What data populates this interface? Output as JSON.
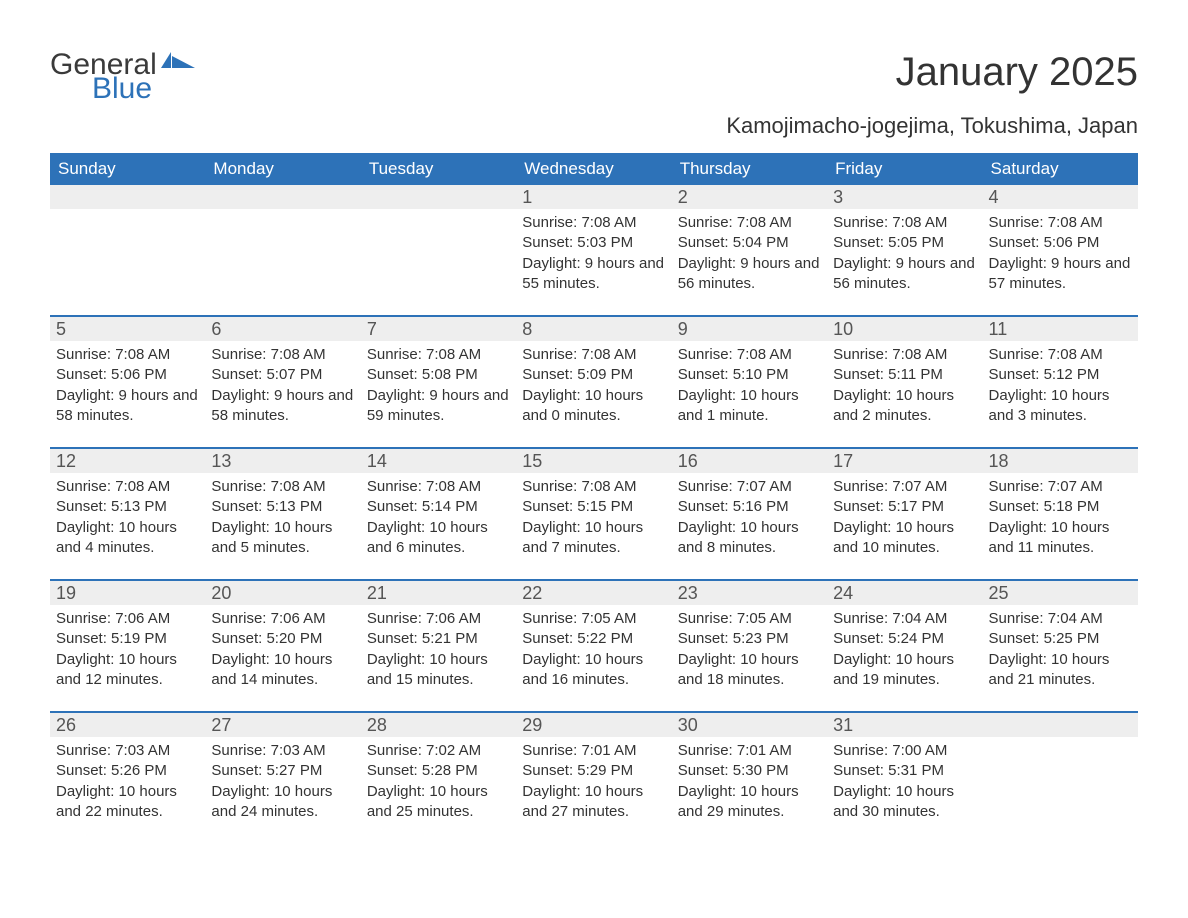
{
  "brand": {
    "general": "General",
    "blue": "Blue",
    "flag_color": "#2d72b8"
  },
  "title": "January 2025",
  "subtitle": "Kamojimacho-jogejima, Tokushima, Japan",
  "colors": {
    "header_bg": "#2d72b8",
    "header_text": "#ffffff",
    "daynum_bg": "#eeeeee",
    "body_text": "#333333",
    "week_divider": "#2d72b8",
    "page_bg": "#ffffff"
  },
  "weekdays": [
    "Sunday",
    "Monday",
    "Tuesday",
    "Wednesday",
    "Thursday",
    "Friday",
    "Saturday"
  ],
  "weeks": [
    [
      null,
      null,
      null,
      {
        "n": "1",
        "sunrise": "7:08 AM",
        "sunset": "5:03 PM",
        "daylight": "9 hours and 55 minutes."
      },
      {
        "n": "2",
        "sunrise": "7:08 AM",
        "sunset": "5:04 PM",
        "daylight": "9 hours and 56 minutes."
      },
      {
        "n": "3",
        "sunrise": "7:08 AM",
        "sunset": "5:05 PM",
        "daylight": "9 hours and 56 minutes."
      },
      {
        "n": "4",
        "sunrise": "7:08 AM",
        "sunset": "5:06 PM",
        "daylight": "9 hours and 57 minutes."
      }
    ],
    [
      {
        "n": "5",
        "sunrise": "7:08 AM",
        "sunset": "5:06 PM",
        "daylight": "9 hours and 58 minutes."
      },
      {
        "n": "6",
        "sunrise": "7:08 AM",
        "sunset": "5:07 PM",
        "daylight": "9 hours and 58 minutes."
      },
      {
        "n": "7",
        "sunrise": "7:08 AM",
        "sunset": "5:08 PM",
        "daylight": "9 hours and 59 minutes."
      },
      {
        "n": "8",
        "sunrise": "7:08 AM",
        "sunset": "5:09 PM",
        "daylight": "10 hours and 0 minutes."
      },
      {
        "n": "9",
        "sunrise": "7:08 AM",
        "sunset": "5:10 PM",
        "daylight": "10 hours and 1 minute."
      },
      {
        "n": "10",
        "sunrise": "7:08 AM",
        "sunset": "5:11 PM",
        "daylight": "10 hours and 2 minutes."
      },
      {
        "n": "11",
        "sunrise": "7:08 AM",
        "sunset": "5:12 PM",
        "daylight": "10 hours and 3 minutes."
      }
    ],
    [
      {
        "n": "12",
        "sunrise": "7:08 AM",
        "sunset": "5:13 PM",
        "daylight": "10 hours and 4 minutes."
      },
      {
        "n": "13",
        "sunrise": "7:08 AM",
        "sunset": "5:13 PM",
        "daylight": "10 hours and 5 minutes."
      },
      {
        "n": "14",
        "sunrise": "7:08 AM",
        "sunset": "5:14 PM",
        "daylight": "10 hours and 6 minutes."
      },
      {
        "n": "15",
        "sunrise": "7:08 AM",
        "sunset": "5:15 PM",
        "daylight": "10 hours and 7 minutes."
      },
      {
        "n": "16",
        "sunrise": "7:07 AM",
        "sunset": "5:16 PM",
        "daylight": "10 hours and 8 minutes."
      },
      {
        "n": "17",
        "sunrise": "7:07 AM",
        "sunset": "5:17 PM",
        "daylight": "10 hours and 10 minutes."
      },
      {
        "n": "18",
        "sunrise": "7:07 AM",
        "sunset": "5:18 PM",
        "daylight": "10 hours and 11 minutes."
      }
    ],
    [
      {
        "n": "19",
        "sunrise": "7:06 AM",
        "sunset": "5:19 PM",
        "daylight": "10 hours and 12 minutes."
      },
      {
        "n": "20",
        "sunrise": "7:06 AM",
        "sunset": "5:20 PM",
        "daylight": "10 hours and 14 minutes."
      },
      {
        "n": "21",
        "sunrise": "7:06 AM",
        "sunset": "5:21 PM",
        "daylight": "10 hours and 15 minutes."
      },
      {
        "n": "22",
        "sunrise": "7:05 AM",
        "sunset": "5:22 PM",
        "daylight": "10 hours and 16 minutes."
      },
      {
        "n": "23",
        "sunrise": "7:05 AM",
        "sunset": "5:23 PM",
        "daylight": "10 hours and 18 minutes."
      },
      {
        "n": "24",
        "sunrise": "7:04 AM",
        "sunset": "5:24 PM",
        "daylight": "10 hours and 19 minutes."
      },
      {
        "n": "25",
        "sunrise": "7:04 AM",
        "sunset": "5:25 PM",
        "daylight": "10 hours and 21 minutes."
      }
    ],
    [
      {
        "n": "26",
        "sunrise": "7:03 AM",
        "sunset": "5:26 PM",
        "daylight": "10 hours and 22 minutes."
      },
      {
        "n": "27",
        "sunrise": "7:03 AM",
        "sunset": "5:27 PM",
        "daylight": "10 hours and 24 minutes."
      },
      {
        "n": "28",
        "sunrise": "7:02 AM",
        "sunset": "5:28 PM",
        "daylight": "10 hours and 25 minutes."
      },
      {
        "n": "29",
        "sunrise": "7:01 AM",
        "sunset": "5:29 PM",
        "daylight": "10 hours and 27 minutes."
      },
      {
        "n": "30",
        "sunrise": "7:01 AM",
        "sunset": "5:30 PM",
        "daylight": "10 hours and 29 minutes."
      },
      {
        "n": "31",
        "sunrise": "7:00 AM",
        "sunset": "5:31 PM",
        "daylight": "10 hours and 30 minutes."
      },
      null
    ]
  ],
  "labels": {
    "sunrise_prefix": "Sunrise: ",
    "sunset_prefix": "Sunset: ",
    "daylight_prefix": "Daylight: "
  }
}
